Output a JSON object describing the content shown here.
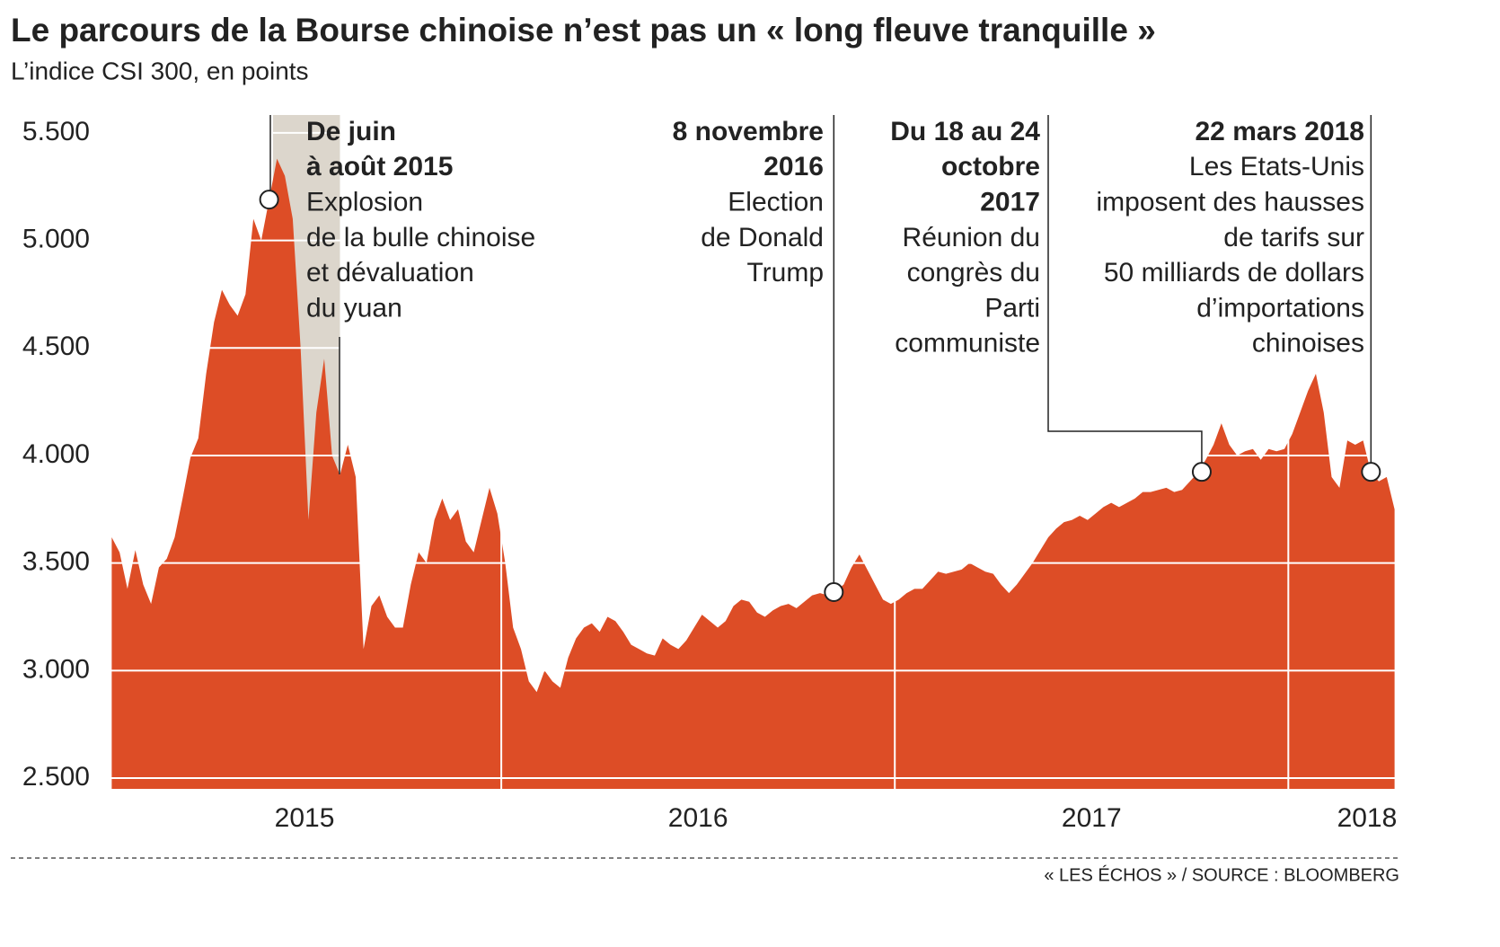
{
  "chart_data": {
    "type": "area",
    "title": "Le parcours de la Bourse chinoise n’est pas un « long fleuve tranquille »",
    "subtitle": "L’indice CSI 300, en points",
    "source": "« LES ÉCHOS » / SOURCE : BLOOMBERG",
    "color": "#dd4d26",
    "grid": true,
    "xlim": [
      2015,
      2018.28
    ],
    "xticks": [
      {
        "value": 2015.5,
        "label": "2015"
      },
      {
        "value": 2016.5,
        "label": "2016"
      },
      {
        "value": 2017.5,
        "label": "2017"
      },
      {
        "value": 2018.2,
        "label": "2018"
      }
    ],
    "year_lines": [
      2016,
      2017,
      2018
    ],
    "ylim": [
      2450,
      5600
    ],
    "yticks": [
      {
        "value": 2500,
        "label": "2.500"
      },
      {
        "value": 3000,
        "label": "3.000"
      },
      {
        "value": 3500,
        "label": "3.500"
      },
      {
        "value": 4000,
        "label": "4.000"
      },
      {
        "value": 4500,
        "label": "4.500"
      },
      {
        "value": 5000,
        "label": "5.000"
      },
      {
        "value": 5500,
        "label": "5.500"
      }
    ],
    "shade": {
      "from": 2015.42,
      "to": 2015.59
    },
    "x": [
      2015.01,
      2015.03,
      2015.05,
      2015.07,
      2015.09,
      2015.11,
      2015.13,
      2015.15,
      2015.17,
      2015.19,
      2015.21,
      2015.23,
      2015.25,
      2015.27,
      2015.29,
      2015.31,
      2015.33,
      2015.35,
      2015.37,
      2015.39,
      2015.41,
      2015.43,
      2015.45,
      2015.47,
      2015.49,
      2015.51,
      2015.53,
      2015.55,
      2015.57,
      2015.59,
      2015.61,
      2015.63,
      2015.65,
      2015.67,
      2015.69,
      2015.71,
      2015.73,
      2015.75,
      2015.77,
      2015.79,
      2015.81,
      2015.83,
      2015.85,
      2015.87,
      2015.89,
      2015.91,
      2015.93,
      2015.95,
      2015.97,
      2015.99,
      2016.01,
      2016.03,
      2016.05,
      2016.07,
      2016.09,
      2016.11,
      2016.13,
      2016.15,
      2016.17,
      2016.19,
      2016.21,
      2016.23,
      2016.25,
      2016.27,
      2016.29,
      2016.31,
      2016.33,
      2016.35,
      2016.37,
      2016.39,
      2016.41,
      2016.43,
      2016.45,
      2016.47,
      2016.49,
      2016.51,
      2016.53,
      2016.55,
      2016.57,
      2016.59,
      2016.61,
      2016.63,
      2016.65,
      2016.67,
      2016.69,
      2016.71,
      2016.73,
      2016.75,
      2016.77,
      2016.79,
      2016.81,
      2016.83,
      2016.85,
      2016.87,
      2016.89,
      2016.91,
      2016.93,
      2016.95,
      2016.97,
      2016.99,
      2017.01,
      2017.03,
      2017.05,
      2017.07,
      2017.09,
      2017.11,
      2017.13,
      2017.15,
      2017.17,
      2017.19,
      2017.21,
      2017.23,
      2017.25,
      2017.27,
      2017.29,
      2017.31,
      2017.33,
      2017.35,
      2017.37,
      2017.39,
      2017.41,
      2017.43,
      2017.45,
      2017.47,
      2017.49,
      2017.51,
      2017.53,
      2017.55,
      2017.57,
      2017.59,
      2017.61,
      2017.63,
      2017.65,
      2017.67,
      2017.69,
      2017.71,
      2017.73,
      2017.75,
      2017.77,
      2017.79,
      2017.81,
      2017.83,
      2017.85,
      2017.87,
      2017.89,
      2017.91,
      2017.93,
      2017.95,
      2017.97,
      2017.99,
      2018.01,
      2018.03,
      2018.05,
      2018.07,
      2018.09,
      2018.11,
      2018.13,
      2018.15,
      2018.17,
      2018.19,
      2018.21,
      2018.23,
      2018.25,
      2018.27
    ],
    "values": [
      3620,
      3550,
      3380,
      3560,
      3400,
      3310,
      3480,
      3520,
      3620,
      3800,
      3990,
      4080,
      4380,
      4620,
      4770,
      4700,
      4650,
      4750,
      5100,
      5000,
      5190,
      5380,
      5300,
      5100,
      4500,
      3700,
      4200,
      4450,
      4000,
      3910,
      4050,
      3900,
      3100,
      3300,
      3350,
      3250,
      3200,
      3200,
      3400,
      3550,
      3500,
      3700,
      3800,
      3700,
      3750,
      3600,
      3550,
      3700,
      3850,
      3730,
      3500,
      3200,
      3100,
      2950,
      2900,
      3000,
      2950,
      2920,
      3060,
      3150,
      3200,
      3220,
      3180,
      3250,
      3230,
      3180,
      3120,
      3100,
      3080,
      3070,
      3150,
      3120,
      3100,
      3140,
      3200,
      3260,
      3230,
      3200,
      3230,
      3300,
      3330,
      3320,
      3270,
      3250,
      3280,
      3300,
      3310,
      3290,
      3320,
      3350,
      3360,
      3350,
      3370,
      3400,
      3480,
      3540,
      3470,
      3400,
      3330,
      3310,
      3330,
      3360,
      3380,
      3380,
      3420,
      3460,
      3450,
      3460,
      3470,
      3500,
      3480,
      3460,
      3450,
      3400,
      3360,
      3400,
      3450,
      3500,
      3560,
      3620,
      3660,
      3690,
      3700,
      3720,
      3700,
      3730,
      3760,
      3780,
      3760,
      3780,
      3800,
      3830,
      3830,
      3840,
      3850,
      3830,
      3840,
      3880,
      3920,
      3980,
      4050,
      4150,
      4050,
      4000,
      4020,
      4030,
      3980,
      4030,
      4020,
      4030,
      4100,
      4200,
      4300,
      4380,
      4200,
      3900,
      3850,
      4070,
      4050,
      4070,
      3920,
      3880,
      3900,
      3750
    ],
    "annotations": [
      {
        "title_lines": [
          "De juin",
          "à août 2015"
        ],
        "text_lines": [
          "Explosion",
          "de la bulle chinoise",
          "et dévaluation",
          "du yuan"
        ],
        "x": 2015.41,
        "y": 5190
      },
      {
        "title_lines": [
          "8 novembre",
          "2016"
        ],
        "text_lines": [
          "Election",
          "de Donald",
          "Trump"
        ],
        "x": 2016.845,
        "y": 3365
      },
      {
        "title_lines": [
          "Du 18 au 24",
          "octobre",
          "2017"
        ],
        "text_lines": [
          "Réunion du",
          "congrès du",
          "Parti",
          "communiste"
        ],
        "x": 2017.78,
        "y": 3924
      },
      {
        "title_lines": [
          "22 mars 2018"
        ],
        "text_lines": [
          "Les Etats-Unis",
          "imposent des hausses",
          "de tarifs sur",
          "50 milliards de dollars",
          "d’importations",
          "chinoises"
        ],
        "x": 2018.21,
        "y": 3924
      }
    ]
  }
}
